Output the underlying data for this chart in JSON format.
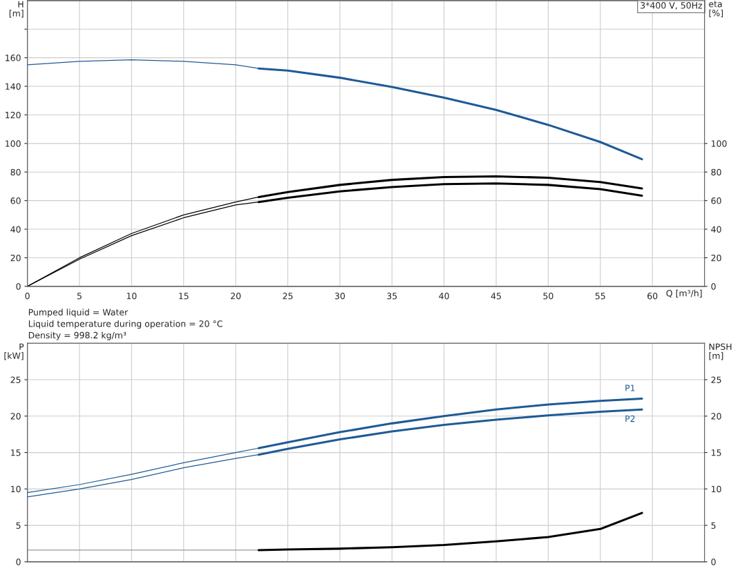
{
  "chart_data": [
    {
      "type": "line",
      "title": "3*400 V, 50Hz",
      "xlabel": "Q [m³/h]",
      "ylabel": "H\n[m]",
      "y2label": "eta\n[%]",
      "xlim": [
        0,
        65
      ],
      "xticks": [
        0,
        5,
        10,
        15,
        20,
        25,
        30,
        35,
        40,
        45,
        50,
        55,
        60
      ],
      "ylim": [
        0,
        200
      ],
      "yticks": [
        0,
        20,
        40,
        60,
        80,
        100,
        120,
        140,
        160,
        {
          "value": 180,
          "label": null
        }
      ],
      "y2lim": [
        0,
        200
      ],
      "y2ticks": [
        0,
        20,
        40,
        60,
        80,
        100
      ],
      "grid": true,
      "annotations": [
        "Pumped liquid = Water",
        "Liquid temperature during operation = 20 °C",
        "Density = 998.2 kg/m³"
      ],
      "series": [
        {
          "color": "#1f5a96",
          "x": [
            0,
            5,
            10,
            15,
            20,
            22.2
          ],
          "values": [
            155,
            157.5,
            158.5,
            157.5,
            155,
            152.5
          ]
        },
        {
          "color": "#1f5a96",
          "x": [
            22.2,
            25,
            30,
            35,
            40,
            45,
            50,
            55,
            59
          ],
          "values": [
            152.5,
            151,
            146,
            139.5,
            132,
            123.5,
            113,
            101,
            89
          ]
        },
        {
          "color": "#000000",
          "axis": "y2",
          "x": [
            0,
            5,
            10,
            15,
            20,
            22.2
          ],
          "values": [
            0,
            20,
            37,
            50,
            59,
            62.5
          ]
        },
        {
          "color": "#000000",
          "axis": "y2",
          "x": [
            22.2,
            25,
            30,
            35,
            40,
            45,
            50,
            55,
            59
          ],
          "values": [
            62.5,
            66,
            71,
            74.5,
            76.5,
            77,
            76,
            73,
            68.5
          ]
        },
        {
          "color": "#000000",
          "axis": "y2",
          "x": [
            0,
            5,
            10,
            15,
            20,
            22.2
          ],
          "values": [
            0,
            19,
            35.5,
            48,
            57,
            59
          ]
        },
        {
          "color": "#000000",
          "axis": "y2",
          "x": [
            22.2,
            25,
            30,
            35,
            40,
            45,
            50,
            55,
            59
          ],
          "values": [
            59,
            62,
            66.5,
            69.5,
            71.5,
            72,
            71,
            68,
            63.5
          ]
        }
      ]
    },
    {
      "type": "line",
      "ylabel": "P\n[kW]",
      "y2label": "NPSH\n[m]",
      "xlim": [
        0,
        65
      ],
      "xticks": [
        {
          "value": 0,
          "label": null
        },
        {
          "value": 5,
          "label": null
        },
        {
          "value": 10,
          "label": null
        },
        {
          "value": 15,
          "label": null
        },
        {
          "value": 20,
          "label": null
        },
        {
          "value": 25,
          "label": null
        },
        {
          "value": 30,
          "label": null
        },
        {
          "value": 35,
          "label": null
        },
        {
          "value": 40,
          "label": null
        },
        {
          "value": 45,
          "label": null
        },
        {
          "value": 50,
          "label": null
        },
        {
          "value": 55,
          "label": null
        },
        {
          "value": 60,
          "label": null
        }
      ],
      "ylim": [
        0,
        30
      ],
      "yticks": [
        0,
        5,
        10,
        15,
        20,
        25
      ],
      "y2lim": [
        0,
        30
      ],
      "y2ticks": [
        0,
        5,
        10,
        15,
        20,
        25
      ],
      "grid": true,
      "tick_labels": "y",
      "series": [
        {
          "color": "#1f5a96",
          "x": [
            0,
            5,
            10,
            15,
            20,
            22.2
          ],
          "values": [
            9.5,
            10.6,
            12,
            13.6,
            15,
            15.6
          ]
        },
        {
          "name": "P1",
          "color": "#1f5a96",
          "x": [
            22.2,
            25,
            30,
            35,
            40,
            45,
            50,
            55,
            59
          ],
          "values": [
            15.6,
            16.4,
            17.8,
            19,
            20,
            20.9,
            21.6,
            22.1,
            22.4
          ]
        },
        {
          "color": "#1f5a96",
          "x": [
            0,
            5,
            10,
            15,
            20,
            22.2
          ],
          "values": [
            8.9,
            10,
            11.3,
            12.9,
            14.2,
            14.7
          ]
        },
        {
          "name": "P2",
          "color": "#1f5a96",
          "x": [
            22.2,
            25,
            30,
            35,
            40,
            45,
            50,
            55,
            59
          ],
          "values": [
            14.7,
            15.5,
            16.8,
            17.9,
            18.8,
            19.5,
            20.1,
            20.6,
            20.9
          ]
        },
        {
          "color": "#999999",
          "axis": "y2",
          "x": [
            0,
            5,
            10,
            15,
            20,
            22.2
          ],
          "values": [
            1.6,
            1.6,
            1.6,
            1.6,
            1.6,
            1.6
          ]
        },
        {
          "color": "#000000",
          "axis": "y2",
          "x": [
            22.2,
            25,
            30,
            35,
            40,
            45,
            50,
            55,
            59
          ],
          "values": [
            1.6,
            1.7,
            1.8,
            2.0,
            2.3,
            2.8,
            3.4,
            4.5,
            6.7
          ]
        }
      ]
    }
  ]
}
